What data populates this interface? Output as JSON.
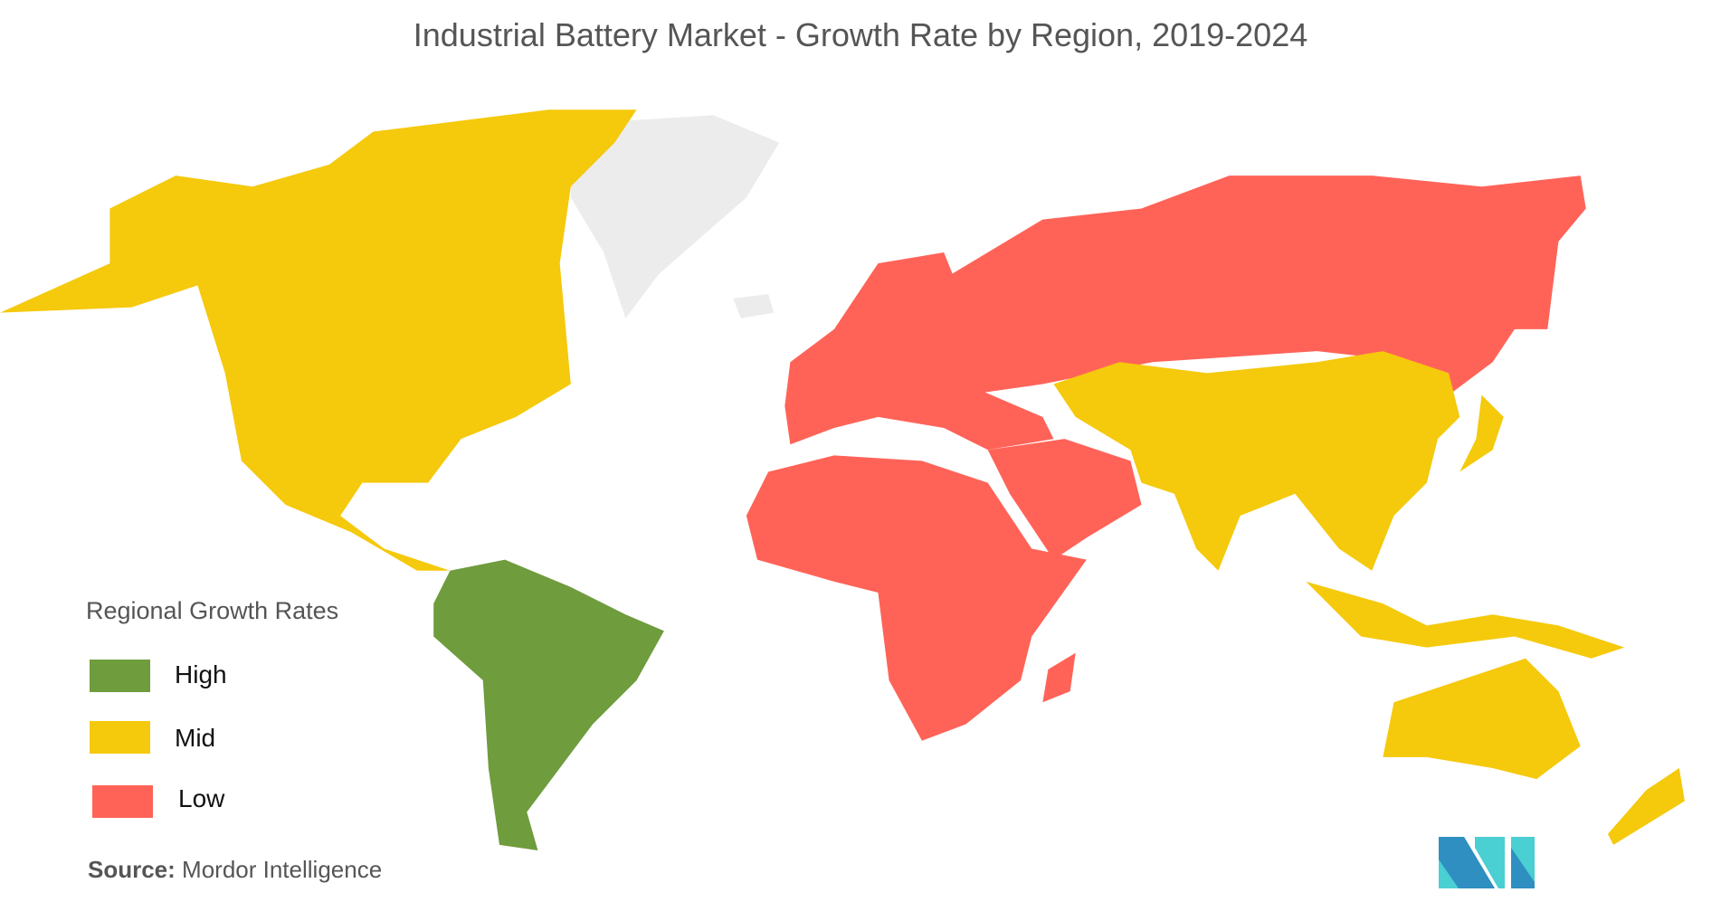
{
  "title": "Industrial Battery Market - Growth Rate by Region, 2019-2024",
  "legend": {
    "title": "Regional Growth Rates",
    "items": [
      {
        "label": "High",
        "color": "#6f9c3d"
      },
      {
        "label": "Mid",
        "color": "#f5c90c"
      },
      {
        "label": "Low",
        "color": "#ff6358"
      }
    ]
  },
  "regions": {
    "North America": "Mid",
    "South America": "High",
    "Europe": "Low",
    "Russia": "Low",
    "Middle East and Africa": "Low",
    "Asia-Pacific": "Mid"
  },
  "no_data_color": "#ececec",
  "source": {
    "label": "Source:",
    "text": "Mordor Intelligence"
  },
  "logo": {
    "text": "MI",
    "colors": [
      "#2e8fc0",
      "#4acfd2"
    ]
  }
}
